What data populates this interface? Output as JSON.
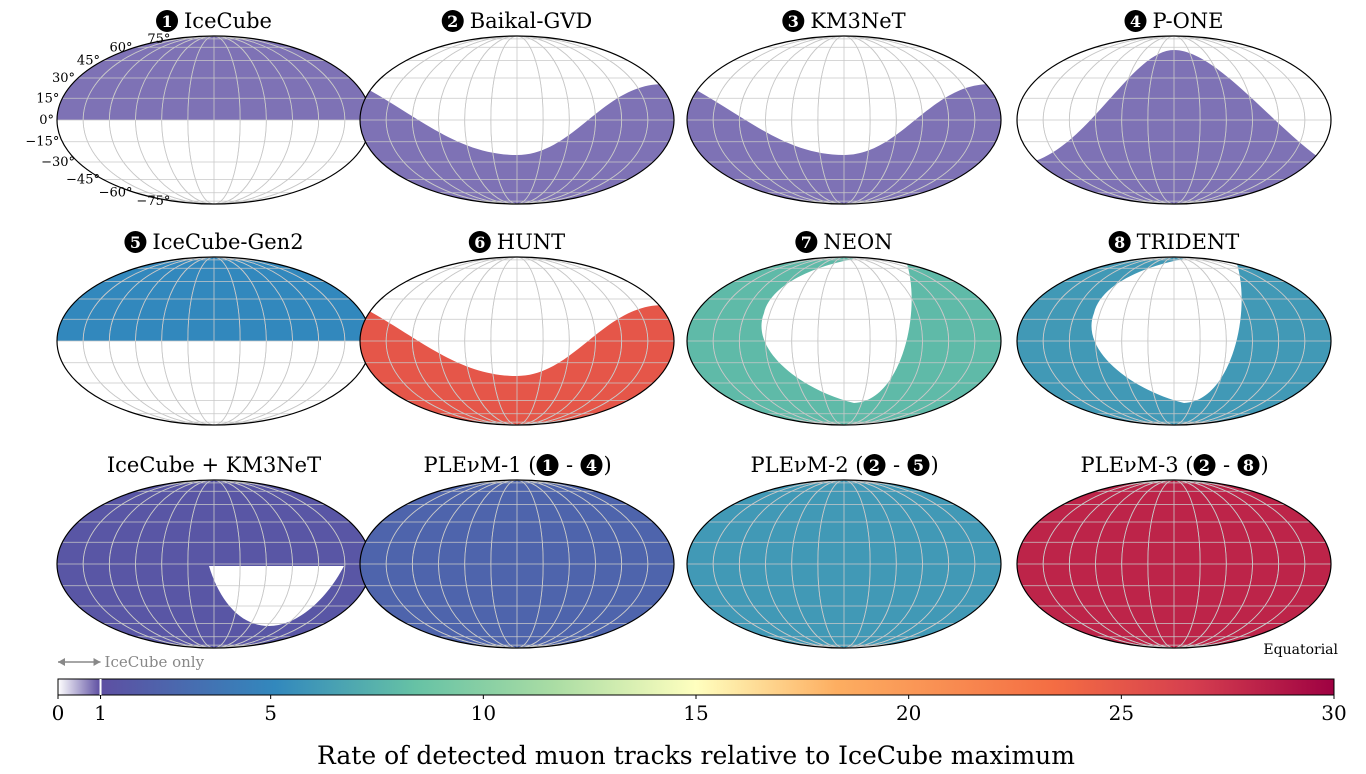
{
  "chart_data": {
    "type": "heatmap",
    "projection": "mollweide",
    "coordinate_frame": "Equatorial",
    "grid": true,
    "lat_tick_labels": [
      "75°",
      "60°",
      "45°",
      "30°",
      "15°",
      "0°",
      "−15°",
      "−30°",
      "−45°",
      "−60°",
      "−75°"
    ],
    "colormap": "Spectral (reversed)",
    "colorbar": {
      "label": "Rate of detected muon tracks relative to IceCube maximum",
      "range": [
        0,
        30
      ],
      "ticks": [
        "0",
        "1",
        "5",
        "10",
        "15",
        "20",
        "25",
        "30"
      ],
      "tick_values": [
        0,
        1,
        5,
        10,
        15,
        20,
        25,
        30
      ],
      "annotation": "IceCube only",
      "annotation_range": [
        0,
        1
      ]
    },
    "panels": [
      {
        "badge": "1",
        "title": "IceCube",
        "visible": "north",
        "level": 0.8
      },
      {
        "badge": "2",
        "title": "Baikal-GVD",
        "visible": "south-wave",
        "level": 0.8
      },
      {
        "badge": "3",
        "title": "KM3NeT",
        "visible": "south-wave",
        "level": 0.8
      },
      {
        "badge": "4",
        "title": "P-ONE",
        "visible": "arch",
        "level": 0.8
      },
      {
        "badge": "5",
        "title": "IceCube-Gen2",
        "visible": "north",
        "level": 5
      },
      {
        "badge": "6",
        "title": "HUNT",
        "visible": "south-wave",
        "level": 25
      },
      {
        "badge": "7",
        "title": "NEON",
        "visible": "all-but-loop",
        "level": 8
      },
      {
        "badge": "8",
        "title": "TRIDENT",
        "visible": "all-but-loop",
        "level": 6
      },
      {
        "title": "IceCube + KM3NeT",
        "visible": "all-but-wedge",
        "level": 1.5
      },
      {
        "title": "PLEνM-1 (",
        "badges_after": [
          "1",
          "4"
        ],
        "visible": "all",
        "level": 2.5
      },
      {
        "title": "PLEνM-2 (",
        "badges_after": [
          "2",
          "5"
        ],
        "visible": "all",
        "level": 6
      },
      {
        "title": "PLEνM-3 (",
        "badges_after": [
          "2",
          "8"
        ],
        "visible": "all",
        "level": 28
      }
    ]
  },
  "labels": {
    "dash": "-",
    "close_paren": ")"
  }
}
